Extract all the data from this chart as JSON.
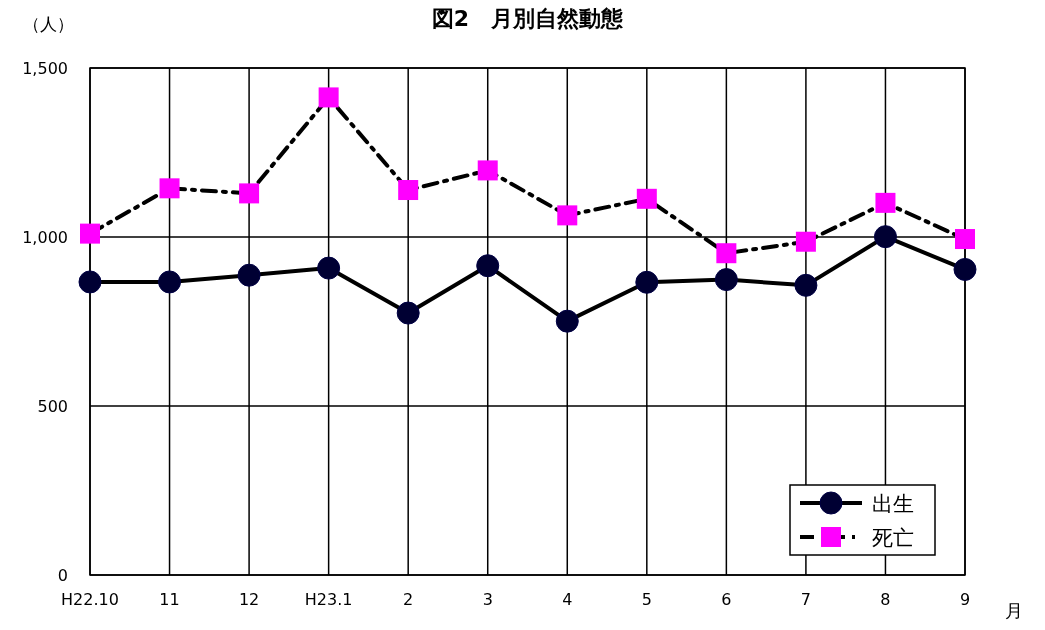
{
  "chart_data": {
    "type": "line",
    "title": "図2　月別自然動態",
    "ylabel": "（人）",
    "xlabel": "月",
    "categories": [
      "H22.10",
      "11",
      "12",
      "H23.1",
      "2",
      "3",
      "4",
      "5",
      "6",
      "7",
      "8",
      "9"
    ],
    "ylim": [
      0,
      1500
    ],
    "yticks": [
      {
        "value": 0,
        "label": "0"
      },
      {
        "value": 500,
        "label": "500"
      },
      {
        "value": 1000,
        "label": "1,000"
      },
      {
        "value": 1500,
        "label": "1,500"
      }
    ],
    "grid": true,
    "legend": "bottom right",
    "series": [
      {
        "name": "出生",
        "color": "#000033",
        "marker": "circle",
        "line_style": "solid",
        "values": [
          867,
          867,
          887,
          908,
          775,
          915,
          751,
          866,
          874,
          857,
          1001,
          904
        ]
      },
      {
        "name": "死亡",
        "color": "#ff00ff",
        "marker": "square",
        "line_style": "dashed",
        "values": [
          1010,
          1144,
          1129,
          1413,
          1139,
          1197,
          1064,
          1113,
          952,
          986,
          1101,
          994
        ]
      }
    ]
  }
}
